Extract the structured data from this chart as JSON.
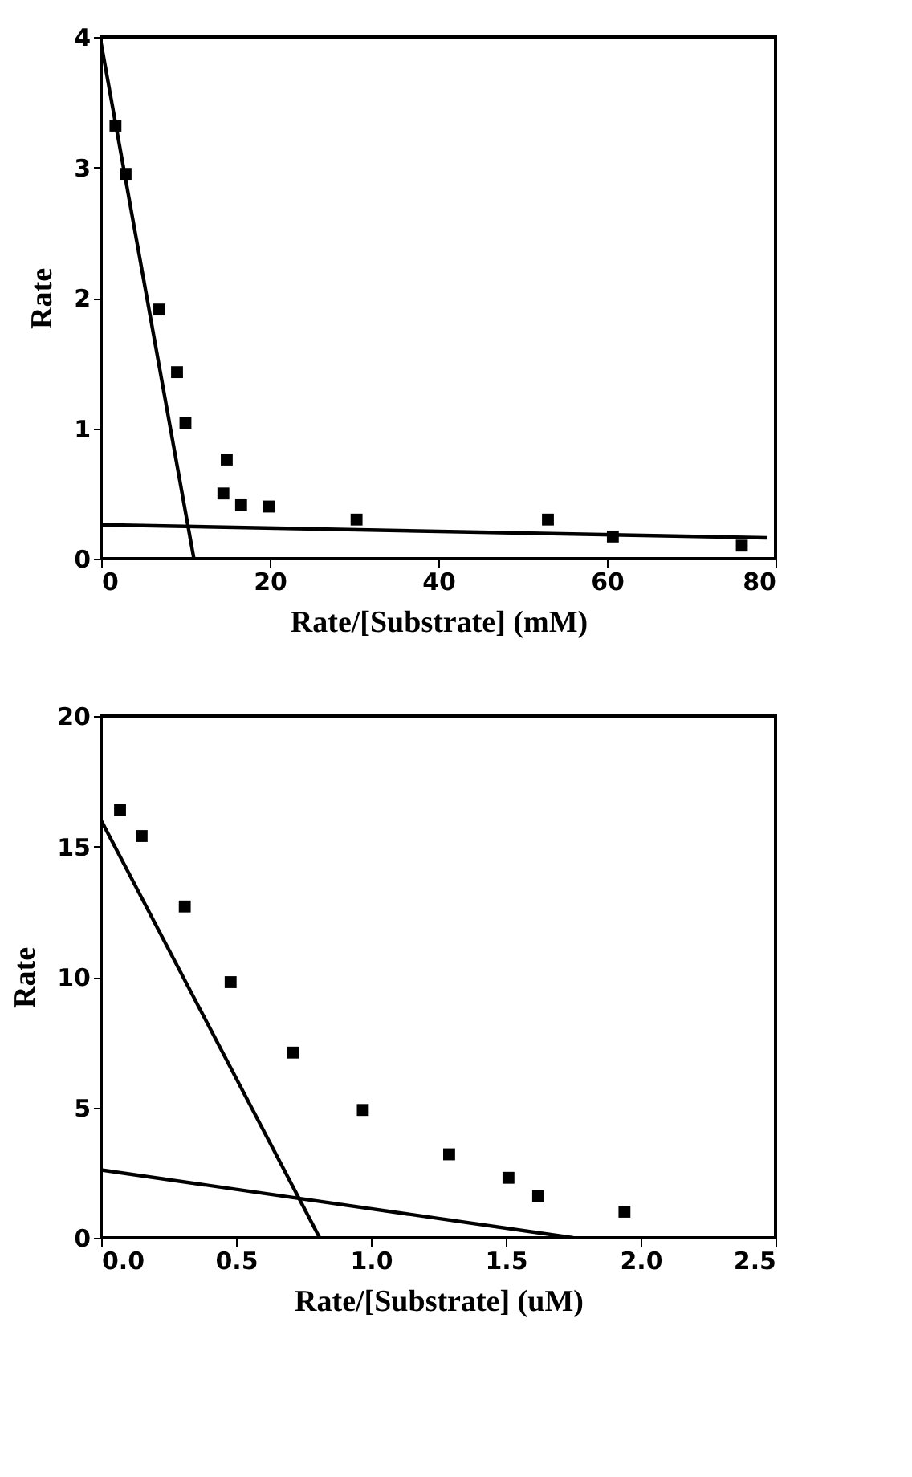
{
  "chart_data": [
    {
      "type": "scatter",
      "xlabel": "Rate/[Substrate] (mM)",
      "ylabel": "Rate",
      "xlim": [
        0,
        80
      ],
      "ylim": [
        0,
        4
      ],
      "xticks": [
        0,
        20,
        40,
        60,
        80
      ],
      "yticks": [
        0,
        1,
        2,
        3,
        4
      ],
      "grid": false,
      "series": [
        {
          "marker": "square",
          "color": "#000000",
          "x": [
            1.7,
            2.9,
            6.9,
            9.0,
            10.0,
            14.9,
            14.5,
            16.6,
            19.9,
            30.3,
            53,
            60.7,
            76
          ],
          "values": [
            3.32,
            2.95,
            1.91,
            1.43,
            1.04,
            0.76,
            0.5,
            0.41,
            0.4,
            0.3,
            0.3,
            0.17,
            0.1
          ]
        },
        {
          "type": "line",
          "color": "#000000",
          "x": [
            0,
            11
          ],
          "values": [
            3.95,
            0
          ]
        },
        {
          "type": "line",
          "color": "#000000",
          "x": [
            0,
            79
          ],
          "values": [
            0.26,
            0.16
          ]
        }
      ]
    },
    {
      "type": "scatter",
      "xlabel": "Rate/[Substrate] (uM)",
      "ylabel": "Rate",
      "xlim": [
        0,
        2.5
      ],
      "ylim": [
        0,
        20
      ],
      "xticks": [
        {
          "value": 0,
          "label": "0.0"
        },
        0.5,
        {
          "value": 1,
          "label": "1.0"
        },
        1.5,
        {
          "value": 2,
          "label": "2.0"
        },
        2.5
      ],
      "yticks": [
        0,
        5,
        10,
        15,
        20
      ],
      "grid": false,
      "series": [
        {
          "marker": "square",
          "color": "#000000",
          "x": [
            0.07,
            0.15,
            0.31,
            0.48,
            0.71,
            0.97,
            1.29,
            1.51,
            1.62,
            1.94
          ],
          "values": [
            16.4,
            15.4,
            12.7,
            9.8,
            7.1,
            4.9,
            3.2,
            2.3,
            1.6,
            1.0
          ]
        },
        {
          "type": "line",
          "color": "#000000",
          "x": [
            0,
            0.81
          ],
          "values": [
            16.0,
            0
          ]
        },
        {
          "type": "line",
          "color": "#000000",
          "x": [
            0,
            1.75
          ],
          "values": [
            2.6,
            0
          ]
        }
      ]
    }
  ]
}
